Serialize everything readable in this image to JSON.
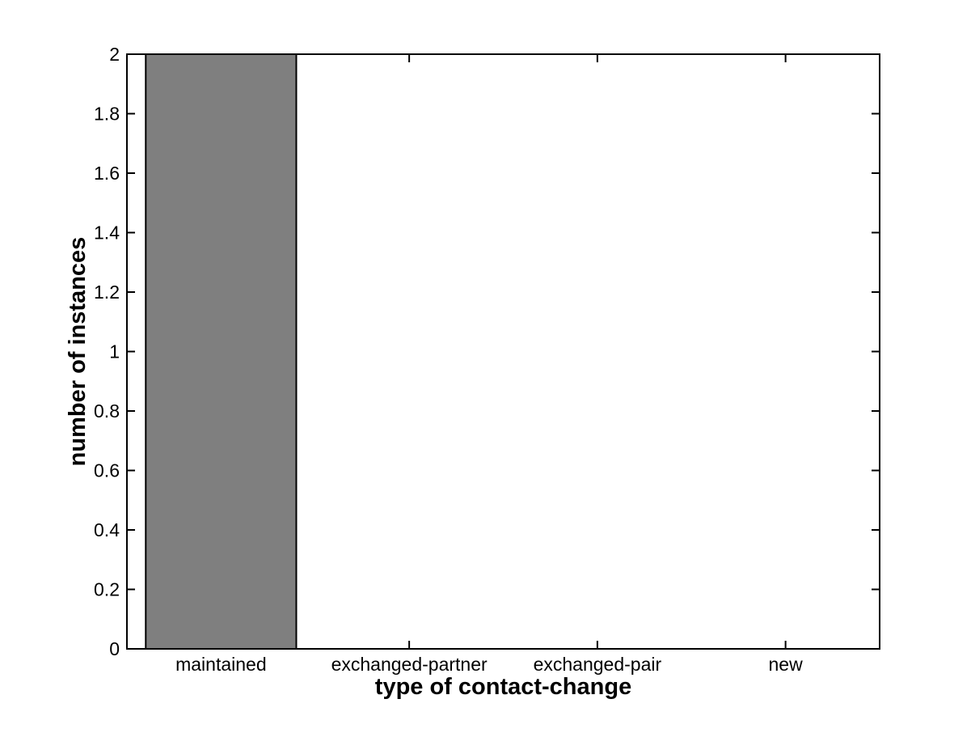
{
  "figure": {
    "background_color": "#FFFFFF"
  },
  "chart_data": {
    "type": "bar",
    "title": "",
    "xlabel": "type of contact-change",
    "ylabel": "number of instances",
    "categories": [
      "maintained",
      "exchanged-partner",
      "exchanged-pair",
      "new"
    ],
    "values": [
      2,
      0,
      0,
      0
    ],
    "series": [
      {
        "name": "number of instances",
        "values": [
          2,
          0,
          0,
          0
        ]
      }
    ],
    "ylim": [
      0,
      2
    ],
    "ytick_values": [
      0,
      0.2,
      0.4,
      0.6,
      0.8,
      1,
      1.2,
      1.4,
      1.6,
      1.8,
      2
    ],
    "ytick_labels": [
      "0",
      "0.2",
      "0.4",
      "0.6",
      "0.8",
      "1",
      "1.2",
      "1.4",
      "1.6",
      "1.8",
      "2"
    ],
    "bar_width_fraction": 0.8,
    "bar_fill_color": "#7F7F7F",
    "bar_edge_color": "#000000",
    "axis_color": "#000000",
    "text_color": "#000000",
    "grid": false,
    "legend": "none",
    "box": true,
    "tick_direction": "in"
  }
}
